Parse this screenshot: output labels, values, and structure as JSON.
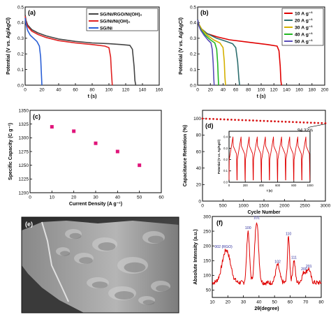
{
  "panels": {
    "a": {
      "label": "(a)",
      "chart_data": {
        "type": "line",
        "xlabel": "t (s)",
        "ylabel": "Potential (V vs. Ag/AgCl)",
        "xlim": [
          0,
          160
        ],
        "ylim": [
          0,
          0.5
        ],
        "xticks": [
          0,
          20,
          40,
          60,
          80,
          100,
          120,
          140,
          160
        ],
        "yticks": [
          0.0,
          0.1,
          0.2,
          0.3,
          0.4,
          0.5
        ],
        "legend": "top-right",
        "series": [
          {
            "name": "SG/Ni/RGO/Ni(OH)₂",
            "color": "#444444",
            "x": [
              0,
              1,
              3,
              8,
              15,
              25,
              40,
              60,
              80,
              100,
              115,
              125,
              128,
              130,
              131,
              132
            ],
            "y": [
              0.45,
              0.415,
              0.385,
              0.355,
              0.335,
              0.315,
              0.295,
              0.28,
              0.27,
              0.265,
              0.26,
              0.255,
              0.23,
              0.12,
              0.03,
              0.0
            ]
          },
          {
            "name": "SG/Ni/Ni(OH)₂",
            "color": "#e02020",
            "x": [
              0,
              1,
              3,
              8,
              15,
              25,
              40,
              60,
              80,
              95,
              100,
              102,
              103,
              104
            ],
            "y": [
              0.44,
              0.405,
              0.375,
              0.345,
              0.325,
              0.305,
              0.285,
              0.27,
              0.26,
              0.25,
              0.24,
              0.18,
              0.08,
              0.0
            ]
          },
          {
            "name": "SG/Ni",
            "color": "#2a5fd6",
            "x": [
              0,
              1,
              3,
              6,
              10,
              14,
              17,
              18.5,
              19.5,
              20
            ],
            "y": [
              0.43,
              0.39,
              0.35,
              0.32,
              0.3,
              0.28,
              0.25,
              0.18,
              0.06,
              0.0
            ]
          }
        ]
      }
    },
    "b": {
      "label": "(b)",
      "chart_data": {
        "type": "line",
        "xlabel": "t (s)",
        "ylabel": "Potential (V vs. Ag/AgCl)",
        "xlim": [
          0,
          200
        ],
        "ylim": [
          0,
          0.5
        ],
        "xticks": [
          0,
          20,
          40,
          60,
          80,
          100,
          120,
          140,
          160,
          180,
          200
        ],
        "yticks": [
          0.0,
          0.1,
          0.2,
          0.3,
          0.4,
          0.5
        ],
        "legend": "top-right",
        "series": [
          {
            "name": "10 A g⁻¹",
            "color": "#e00000",
            "x": [
              0,
              2,
              6,
              15,
              30,
              50,
              80,
              110,
              125,
              128,
              130,
              131,
              132
            ],
            "y": [
              0.42,
              0.39,
              0.36,
              0.33,
              0.31,
              0.29,
              0.275,
              0.26,
              0.25,
              0.22,
              0.12,
              0.03,
              0.0
            ]
          },
          {
            "name": "20 A g⁻¹",
            "color": "#2d6e6e",
            "x": [
              0,
              2,
              6,
              15,
              30,
              45,
              55,
              60,
              63,
              65,
              66
            ],
            "y": [
              0.42,
              0.39,
              0.36,
              0.33,
              0.3,
              0.28,
              0.265,
              0.24,
              0.15,
              0.04,
              0.0
            ]
          },
          {
            "name": "30 A g⁻¹",
            "color": "#d4b000",
            "x": [
              0,
              2,
              6,
              15,
              25,
              35,
              40,
              42,
              43,
              44
            ],
            "y": [
              0.42,
              0.39,
              0.36,
              0.32,
              0.29,
              0.27,
              0.24,
              0.15,
              0.05,
              0.0
            ]
          },
          {
            "name": "40 A g⁻¹",
            "color": "#22b822",
            "x": [
              0,
              2,
              6,
              12,
              20,
              27,
              30,
              31.5,
              32.5,
              33
            ],
            "y": [
              0.42,
              0.38,
              0.35,
              0.32,
              0.29,
              0.27,
              0.23,
              0.14,
              0.04,
              0.0
            ]
          },
          {
            "name": "50 A g⁻¹",
            "color": "#5a4db8",
            "x": [
              0,
              2,
              5,
              10,
              16,
              21,
              23,
              24.5,
              25.5,
              26
            ],
            "y": [
              0.42,
              0.38,
              0.35,
              0.32,
              0.29,
              0.27,
              0.23,
              0.14,
              0.04,
              0.0
            ]
          }
        ]
      }
    },
    "c": {
      "label": "(c)",
      "chart_data": {
        "type": "scatter",
        "xlabel": "Current Density (A g⁻¹)",
        "ylabel": "Specific Capacity (C g⁻¹)",
        "xlim": [
          0,
          60
        ],
        "ylim": [
          1200,
          1350
        ],
        "xticks": [
          0,
          10,
          20,
          30,
          40,
          50,
          60
        ],
        "yticks": [
          1200,
          1225,
          1250,
          1275,
          1300,
          1325,
          1350
        ],
        "series": [
          {
            "color": "#e0147a",
            "x": [
              10,
              20,
              30,
              40,
              50
            ],
            "y": [
              1320,
              1312,
              1290,
              1275,
              1250
            ]
          }
        ]
      }
    },
    "d": {
      "label": "(d)",
      "annotation": "94.32%",
      "chart_data": {
        "type": "scatter",
        "xlabel": "Cycle Number",
        "ylabel": "Capacitance Retention (%)",
        "xlim": [
          0,
          3000
        ],
        "ylim": [
          0,
          110
        ],
        "xticks": [
          0,
          500,
          1000,
          1500,
          2000,
          2500,
          3000
        ],
        "yticks": [
          0,
          20,
          40,
          60,
          80,
          100
        ],
        "series": [
          {
            "color": "#d81414",
            "x_start": 0,
            "x_end": 3000,
            "y_start": 100,
            "y_end": 94.32
          }
        ]
      },
      "inset": {
        "xlabel": "t (s)",
        "ylabel": "Potential (V vs. Ag/AgCl)",
        "xlim": [
          0,
          1000
        ],
        "ylim": [
          0,
          0.45
        ],
        "xticks": [
          0,
          200,
          400,
          600,
          800,
          1000
        ],
        "yticks": [
          0.0,
          0.1,
          0.2,
          0.3,
          0.4
        ],
        "color": "#e00000",
        "cycle_period_s": 100,
        "cycles": 10
      }
    },
    "e": {
      "label": "(e)"
    },
    "f": {
      "label": "(f)",
      "chart_data": {
        "type": "line",
        "xlabel": "2θ(degree)",
        "ylabel": "Absolute Intensity (a.u.)",
        "xlim": [
          10,
          80
        ],
        "ylim": [
          25,
          300
        ],
        "xticks": [
          10,
          20,
          30,
          40,
          50,
          60,
          70,
          80
        ],
        "yticks": [
          50,
          100,
          150,
          200,
          250,
          300
        ],
        "color": "#e00000",
        "baseline": 75,
        "peaks": [
          {
            "label": "002 (RGO)",
            "x": 19,
            "y": 186,
            "width": 2.6
          },
          {
            "label": "100",
            "x": 33,
            "y": 250,
            "width": 0.9
          },
          {
            "label": "101",
            "x": 38.5,
            "y": 285,
            "width": 1.2
          },
          {
            "label": "102",
            "x": 52,
            "y": 135,
            "width": 1.3
          },
          {
            "label": "110",
            "x": 59,
            "y": 230,
            "width": 0.7
          },
          {
            "label": "111",
            "x": 62.5,
            "y": 150,
            "width": 0.8
          },
          {
            "label": "200",
            "x": 69,
            "y": 110,
            "width": 1.3
          },
          {
            "label": "201",
            "x": 72,
            "y": 120,
            "width": 1.2
          }
        ]
      }
    }
  }
}
